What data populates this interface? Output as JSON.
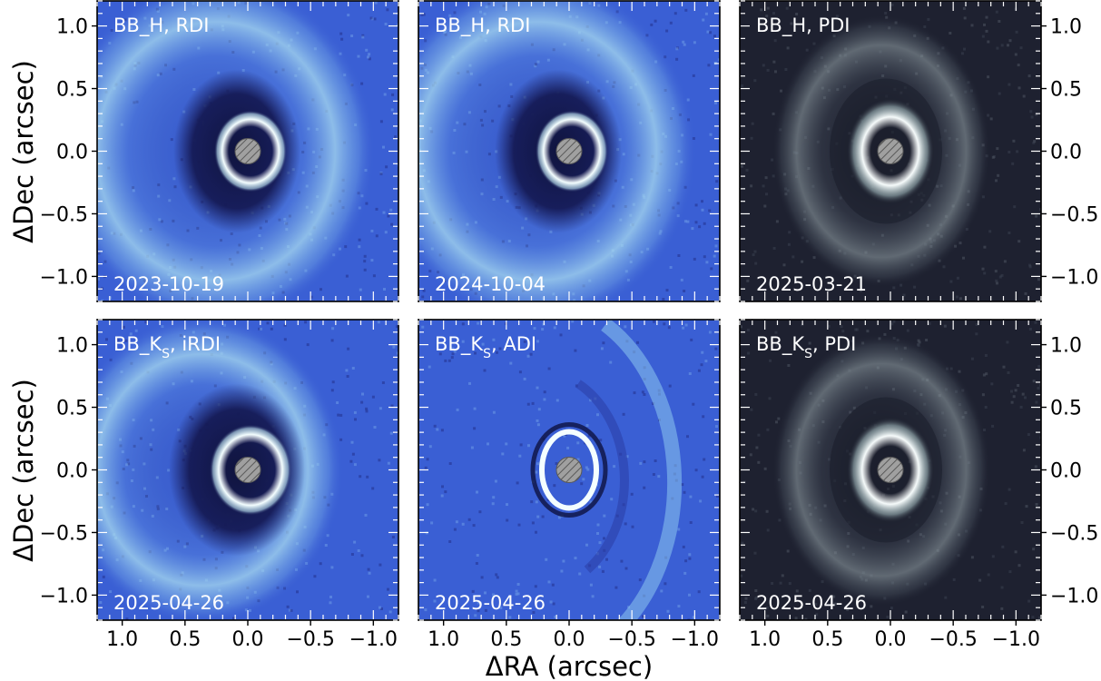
{
  "figure": {
    "xlabel": "ΔRA (arcsec)",
    "ylabel": "ΔDec (arcsec)",
    "xticks": [
      "1.0",
      "0.5",
      "0.0",
      "−0.5",
      "−1.0"
    ],
    "xtick_values": [
      1.0,
      0.5,
      0.0,
      -0.5,
      -1.0
    ],
    "yticks": [
      "1.0",
      "0.5",
      "0.0",
      "−0.5",
      "−1.0"
    ],
    "ytick_values": [
      1.0,
      0.5,
      0.0,
      -0.5,
      -1.0
    ],
    "axis_range": [
      1.2,
      -1.2
    ]
  },
  "panels": [
    {
      "label_main": "BB_H, RDI",
      "label_sub": "",
      "label_rest": "",
      "date": "2023-10-19",
      "colormap": "blue"
    },
    {
      "label_main": "BB_H, RDI",
      "label_sub": "",
      "label_rest": "",
      "date": "2024-10-04",
      "colormap": "blue"
    },
    {
      "label_main": "BB_H, PDI",
      "label_sub": "",
      "label_rest": "",
      "date": "2025-03-21",
      "colormap": "gray"
    },
    {
      "label_main": "BB_K",
      "label_sub": "S",
      "label_rest": ", iRDI",
      "date": "2025-04-26",
      "colormap": "blue"
    },
    {
      "label_main": "BB_K",
      "label_sub": "S",
      "label_rest": ", ADI",
      "date": "2025-04-26",
      "colormap": "blue"
    },
    {
      "label_main": "BB_K",
      "label_sub": "S",
      "label_rest": ", PDI",
      "date": "2025-04-26",
      "colormap": "gray"
    }
  ],
  "colors": {
    "blue_background": "#3a5fd4",
    "blue_dark": "#1a1f5e",
    "blue_bright": "#c8ecf5",
    "gray_background": "#1e2130",
    "gray_bright": "#e8f0f0",
    "mask": "#a0a0a0"
  }
}
